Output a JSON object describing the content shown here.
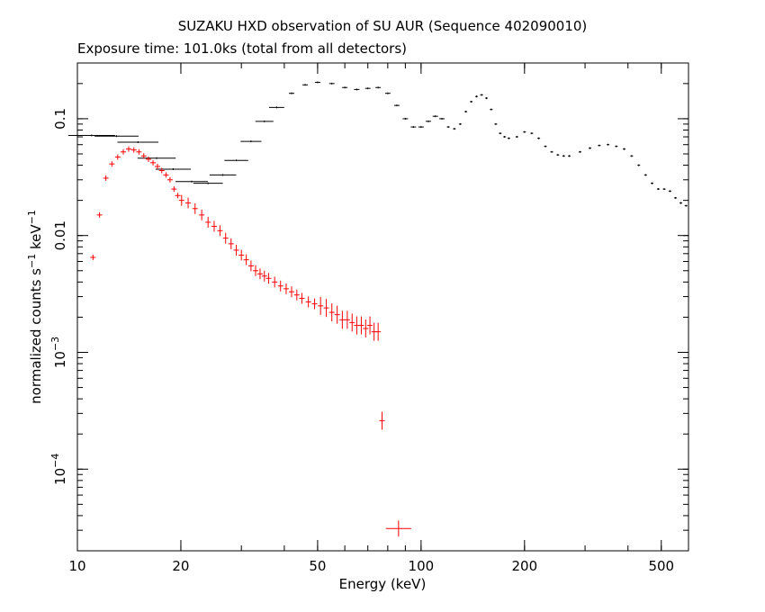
{
  "chart_data": {
    "type": "scatter",
    "title": "SUZAKU HXD observation of SU AUR (Sequence 402090010)",
    "subtitle": "Exposure time: 101.0ks (total from all detectors)",
    "xlabel": "Energy (keV)",
    "ylabel": "normalized counts s^-1 keV^-1",
    "xscale": "log",
    "yscale": "log",
    "xlim": [
      10,
      600
    ],
    "ylim": [
      2e-05,
      0.3
    ],
    "x_ticks": [
      "10",
      "20",
      "50",
      "100",
      "200",
      "500"
    ],
    "y_ticks": [
      "10^-4",
      "10^-3",
      "0.01",
      "0.1"
    ],
    "grid": false,
    "colors": {
      "gso": "#000000",
      "pin": "#ff0000"
    },
    "series": [
      {
        "points": [
          [
            11.0,
            0.072
          ],
          [
            13.0,
            0.071
          ],
          [
            15.0,
            0.063
          ],
          [
            17.0,
            0.046
          ],
          [
            19.0,
            0.037
          ],
          [
            21.5,
            0.029
          ],
          [
            24.0,
            0.028
          ],
          [
            26.5,
            0.033
          ],
          [
            29.0,
            0.044
          ],
          [
            32.0,
            0.064
          ],
          [
            35.0,
            0.095
          ],
          [
            38.0,
            0.125
          ],
          [
            42.0,
            0.165
          ],
          [
            46.0,
            0.195
          ],
          [
            50.0,
            0.205
          ],
          [
            55.0,
            0.2
          ],
          [
            60.0,
            0.185
          ],
          [
            65.0,
            0.178
          ],
          [
            70.0,
            0.182
          ],
          [
            75.0,
            0.185
          ],
          [
            80.0,
            0.165
          ],
          [
            85.0,
            0.13
          ],
          [
            90.0,
            0.1
          ],
          [
            95.0,
            0.085
          ],
          [
            100.0,
            0.085
          ],
          [
            105.0,
            0.095
          ],
          [
            110.0,
            0.105
          ],
          [
            115.0,
            0.1
          ],
          [
            120.0,
            0.085
          ],
          [
            125.0,
            0.082
          ],
          [
            130.0,
            0.09
          ],
          [
            135.0,
            0.115
          ],
          [
            140.0,
            0.14
          ],
          [
            145.0,
            0.155
          ],
          [
            150.0,
            0.16
          ],
          [
            155.0,
            0.15
          ],
          [
            160.0,
            0.12
          ],
          [
            165.0,
            0.09
          ],
          [
            170.0,
            0.075
          ],
          [
            175.0,
            0.07
          ],
          [
            180.0,
            0.068
          ],
          [
            190.0,
            0.07
          ],
          [
            200.0,
            0.077
          ],
          [
            210.0,
            0.075
          ],
          [
            220.0,
            0.068
          ],
          [
            230.0,
            0.058
          ],
          [
            240.0,
            0.052
          ],
          [
            250.0,
            0.049
          ],
          [
            260.0,
            0.048
          ],
          [
            270.0,
            0.048
          ],
          [
            290.0,
            0.052
          ],
          [
            310.0,
            0.056
          ],
          [
            330.0,
            0.059
          ],
          [
            350.0,
            0.06
          ],
          [
            370.0,
            0.058
          ],
          [
            390.0,
            0.055
          ],
          [
            410.0,
            0.048
          ],
          [
            430.0,
            0.04
          ],
          [
            450.0,
            0.033
          ],
          [
            470.0,
            0.028
          ],
          [
            490.0,
            0.025
          ],
          [
            510.0,
            0.025
          ],
          [
            530.0,
            0.024
          ],
          [
            550.0,
            0.021
          ],
          [
            570.0,
            0.019
          ],
          [
            590.0,
            0.018
          ]
        ]
      },
      {
        "points": [
          [
            11.1,
            0.0065
          ],
          [
            11.6,
            0.015
          ],
          [
            12.1,
            0.031
          ],
          [
            12.6,
            0.041
          ],
          [
            13.1,
            0.047
          ],
          [
            13.6,
            0.052
          ],
          [
            14.1,
            0.055
          ],
          [
            14.6,
            0.054
          ],
          [
            15.1,
            0.052
          ],
          [
            15.6,
            0.048
          ],
          [
            16.1,
            0.045
          ],
          [
            16.6,
            0.042
          ],
          [
            17.1,
            0.039
          ],
          [
            17.6,
            0.036
          ],
          [
            18.1,
            0.033
          ],
          [
            18.6,
            0.03
          ],
          [
            19.1,
            0.025
          ],
          [
            19.6,
            0.022
          ],
          [
            20.1,
            0.02
          ],
          [
            21.0,
            0.019
          ],
          [
            22.0,
            0.017
          ],
          [
            23.0,
            0.015
          ],
          [
            24.0,
            0.013
          ],
          [
            25.0,
            0.012
          ],
          [
            26.0,
            0.011
          ],
          [
            27.0,
            0.0095
          ],
          [
            28.0,
            0.0085
          ],
          [
            29.0,
            0.0075
          ],
          [
            30.0,
            0.0068
          ],
          [
            31.0,
            0.0062
          ],
          [
            32.0,
            0.0055
          ],
          [
            33.0,
            0.005
          ],
          [
            34.0,
            0.0047
          ],
          [
            35.0,
            0.0045
          ],
          [
            36.0,
            0.0043
          ],
          [
            37.5,
            0.004
          ],
          [
            39.0,
            0.0037
          ],
          [
            40.5,
            0.0035
          ],
          [
            42.0,
            0.0033
          ],
          [
            43.5,
            0.0031
          ],
          [
            45.0,
            0.0029
          ],
          [
            47.0,
            0.0027
          ],
          [
            49.0,
            0.0026
          ],
          [
            51.0,
            0.0025
          ],
          [
            53.0,
            0.0024
          ],
          [
            55.0,
            0.0022
          ],
          [
            57.0,
            0.0021
          ],
          [
            59.0,
            0.0019
          ],
          [
            61.0,
            0.0019
          ],
          [
            63.0,
            0.0018
          ],
          [
            65.0,
            0.0017
          ],
          [
            67.0,
            0.0017
          ],
          [
            69.0,
            0.0016
          ],
          [
            71.0,
            0.0017
          ],
          [
            73.0,
            0.0015
          ],
          [
            75.0,
            0.0015
          ],
          [
            77.0,
            0.00026
          ],
          [
            86.0,
            3.1e-05
          ]
        ]
      }
    ]
  }
}
